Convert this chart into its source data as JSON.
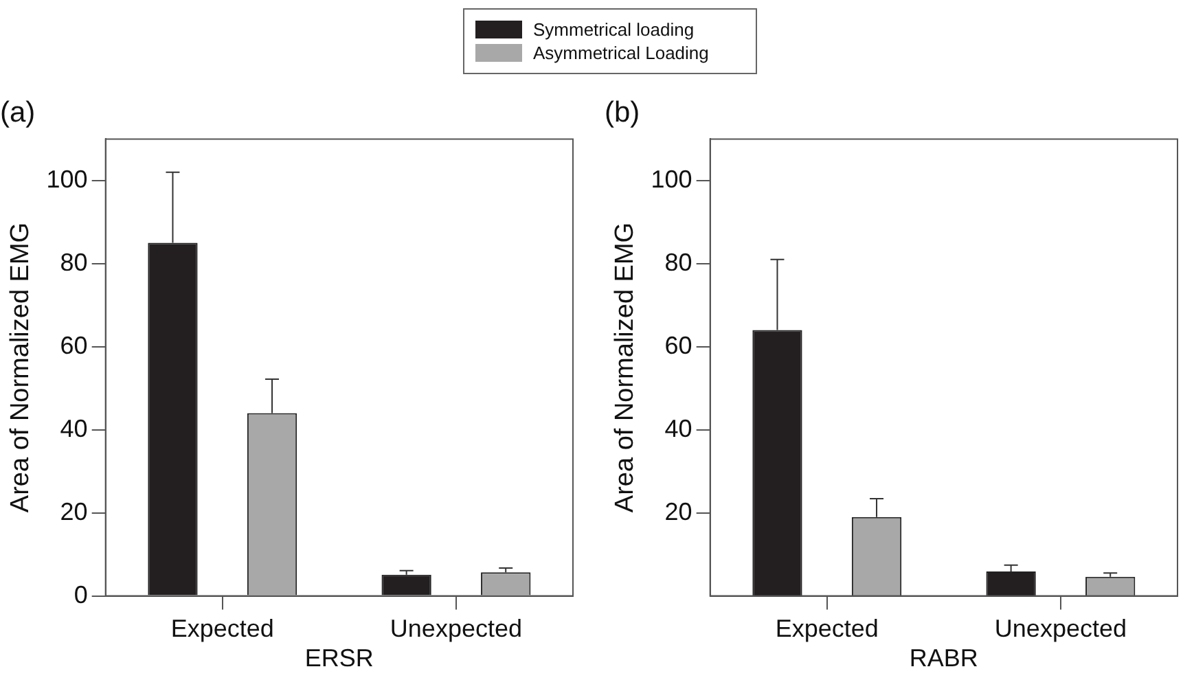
{
  "chart_data": [
    {
      "type": "bar",
      "title": "(a)",
      "xlabel": "ERSR",
      "ylabel": "Area of Normalized EMG",
      "categories": [
        "Expected",
        "Unexpected"
      ],
      "ylim": [
        0,
        110
      ],
      "yticks": [
        0,
        20,
        40,
        60,
        80,
        100
      ],
      "grid": false,
      "legend": "top",
      "series": [
        {
          "name": "Symmetrical loading",
          "color": "#231f20",
          "values": [
            85,
            5.1
          ],
          "errors": [
            [
              85,
              102
            ],
            [
              5.1,
              6.1
            ]
          ]
        },
        {
          "name": "Asymmetrical Loading",
          "color": "#a8a8a8",
          "values": [
            44,
            5.7
          ],
          "errors": [
            [
              44,
              52.2
            ],
            [
              5.7,
              6.7
            ]
          ]
        }
      ]
    },
    {
      "type": "bar",
      "title": "(b)",
      "xlabel": "RABR",
      "ylabel": "Area of Normalized EMG",
      "categories": [
        "Expected",
        "Unexpected"
      ],
      "ylim": [
        0,
        110
      ],
      "yticks": [
        20,
        40,
        60,
        80,
        100
      ],
      "grid": false,
      "series": [
        {
          "color": "#231f20",
          "values": [
            64,
            5.9
          ],
          "errors": [
            [
              64,
              81
            ],
            [
              5.9,
              7.4
            ]
          ]
        },
        {
          "color": "#a8a8a8",
          "values": [
            19,
            4.6
          ],
          "errors": [
            [
              19,
              23.4
            ],
            [
              4.6,
              5.5
            ]
          ]
        }
      ]
    }
  ]
}
